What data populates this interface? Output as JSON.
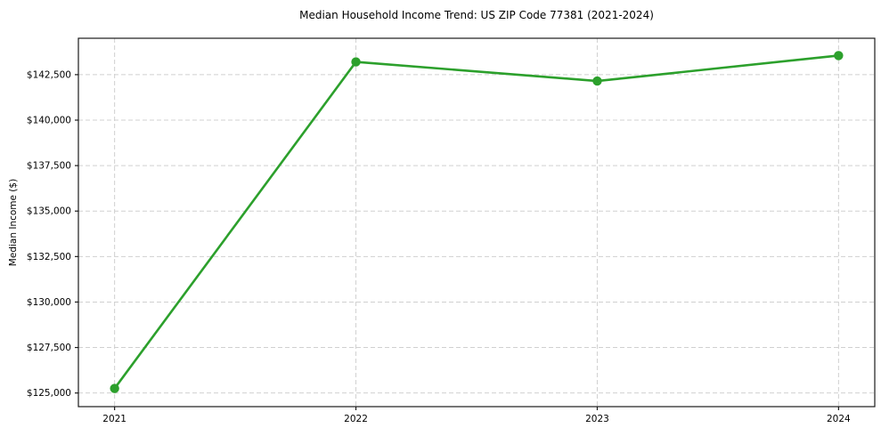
{
  "chart_data": {
    "type": "line",
    "title": "Median Household Income Trend: US ZIP Code 77381 (2021-2024)",
    "xlabel": "",
    "ylabel": "Median Income ($)",
    "x": [
      2021,
      2022,
      2023,
      2024
    ],
    "values": [
      125250,
      143200,
      142150,
      143550
    ],
    "x_tick_labels": [
      "2021",
      "2022",
      "2023",
      "2024"
    ],
    "y_tick_values": [
      125000,
      127500,
      130000,
      132500,
      135000,
      137500,
      140000,
      142500
    ],
    "y_tick_labels": [
      "$125,000",
      "$127,500",
      "$130,000",
      "$132,500",
      "$135,000",
      "$137,500",
      "$140,000",
      "$142,500"
    ],
    "xlim": [
      2020.85,
      2024.15
    ],
    "ylim": [
      124250,
      144500
    ],
    "grid": true,
    "grid_style": "dashed",
    "legend_position": "none",
    "marker": "circle",
    "line_color": "#2ca02c",
    "marker_color": "#2ca02c",
    "grid_color": "#d0d0d0",
    "axis_color": "#1a1a1a",
    "text_color": "#000000",
    "background": "#ffffff"
  }
}
